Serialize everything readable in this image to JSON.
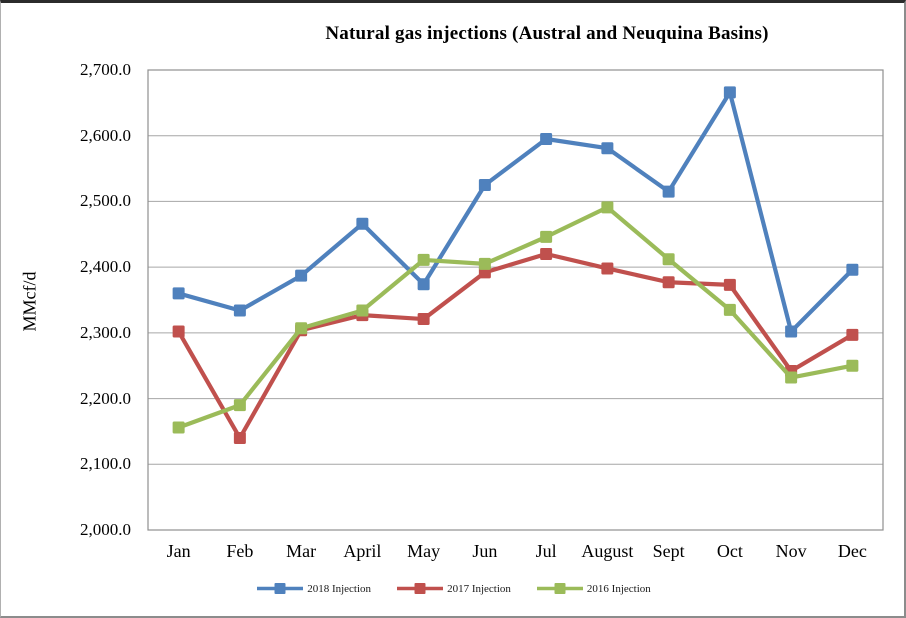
{
  "chart_data": {
    "type": "line",
    "title": "Natural gas injections (Austral and Neuquina Basins)",
    "ylabel": "MMcf/d",
    "xlabel": "",
    "categories": [
      "Jan",
      "Feb",
      "Mar",
      "April",
      "May",
      "Jun",
      "Jul",
      "August",
      "Sept",
      "Oct",
      "Nov",
      "Dec"
    ],
    "series": [
      {
        "name": "2018 Injection",
        "color": "#4F81BD",
        "values": [
          2360,
          2334,
          2387,
          2466,
          2374,
          2525,
          2595,
          2581,
          2515,
          2666,
          2302,
          2396
        ]
      },
      {
        "name": "2017 Injection",
        "color": "#C0504D",
        "values": [
          2302,
          2140,
          2304,
          2327,
          2321,
          2392,
          2420,
          2398,
          2377,
          2373,
          2242,
          2297
        ]
      },
      {
        "name": "2016 Injection",
        "color": "#9BBB59",
        "values": [
          2156,
          2190,
          2307,
          2334,
          2411,
          2405,
          2446,
          2491,
          2412,
          2335,
          2232,
          2250
        ]
      }
    ],
    "ylim": [
      2000,
      2700
    ],
    "y_tick_step": 100,
    "y_tick_labels": [
      "2,000.0",
      "2,100.0",
      "2,200.0",
      "2,300.0",
      "2,400.0",
      "2,500.0",
      "2,600.0",
      "2,700.0"
    ],
    "grid": true,
    "legend_position": "bottom"
  },
  "colors": {
    "gridline": "#a6a6a6",
    "plot_border": "#8f8f8f",
    "background": "#ffffff",
    "text": "#000000"
  }
}
